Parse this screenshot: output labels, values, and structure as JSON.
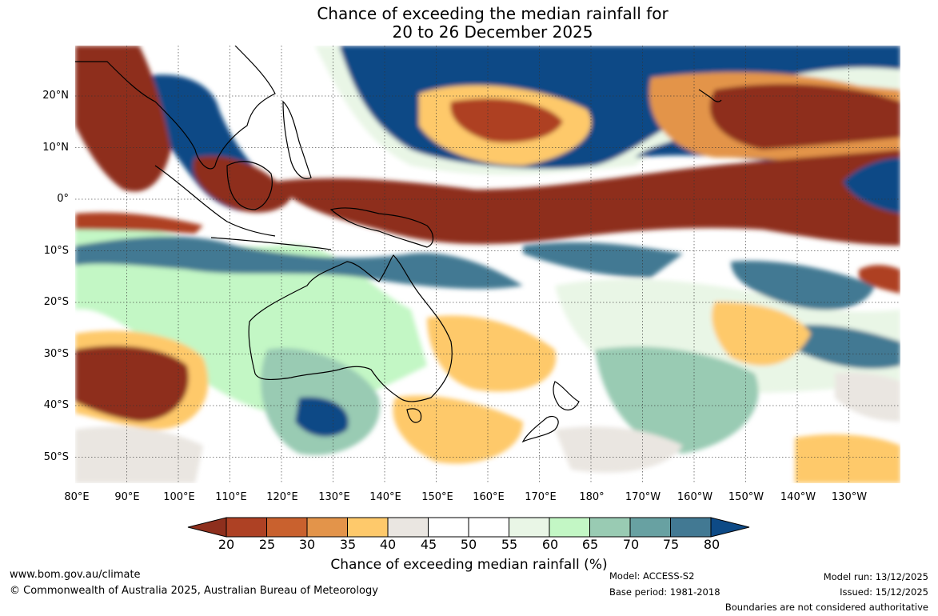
{
  "title": {
    "line1": "Chance of exceeding the median rainfall for",
    "line2": "20 to 26 December 2025"
  },
  "map": {
    "lat_labels": [
      "20°N",
      "10°N",
      "0°",
      "10°S",
      "20°S",
      "30°S",
      "40°S",
      "50°S"
    ],
    "lon_labels": [
      "80°E",
      "90°E",
      "100°E",
      "110°E",
      "120°E",
      "130°E",
      "140°E",
      "150°E",
      "160°E",
      "170°E",
      "180°",
      "170°W",
      "160°W",
      "150°W",
      "140°W",
      "130°W"
    ]
  },
  "colorbar": {
    "title": "Chance of exceeding median rainfall (%)",
    "ticks": [
      "20",
      "25",
      "30",
      "35",
      "40",
      "45",
      "50",
      "55",
      "60",
      "65",
      "70",
      "75",
      "80"
    ],
    "colors": [
      "#8e2f1d",
      "#ae4124",
      "#c9612e",
      "#e3944a",
      "#fec96b",
      "#eae6e1",
      "#ffffff",
      "#ffffff",
      "#e9f6e6",
      "#c3f7c5",
      "#99cbb3",
      "#68a1a2",
      "#427993",
      "#0d4a86"
    ]
  },
  "footer": {
    "website": "www.bom.gov.au/climate",
    "copyright": "© Commonwealth of Australia 2025, Australian Bureau of Meteorology",
    "model": "Model: ACCESS-S2",
    "base_period": "Base period: 1981-2018",
    "model_run": "Model run: 13/12/2025",
    "issued": "Issued: 15/12/2025",
    "disclaimer": "Boundaries are not considered authoritative"
  }
}
